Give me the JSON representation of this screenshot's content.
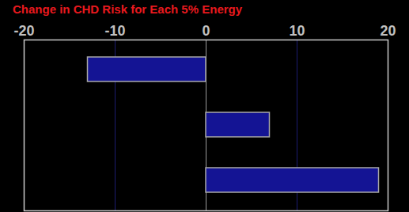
{
  "chart_data": {
    "type": "bar",
    "title": "Change in CHD Risk for Each 5% Energy",
    "orientation": "horizontal",
    "categories": [
      null,
      null,
      null
    ],
    "values": [
      -13,
      7,
      19
    ],
    "color": "#141494",
    "xlim": [
      -20,
      20
    ],
    "xticks": [
      -20,
      -10,
      0,
      10,
      20
    ],
    "grid": true,
    "tick_labels": "x"
  }
}
